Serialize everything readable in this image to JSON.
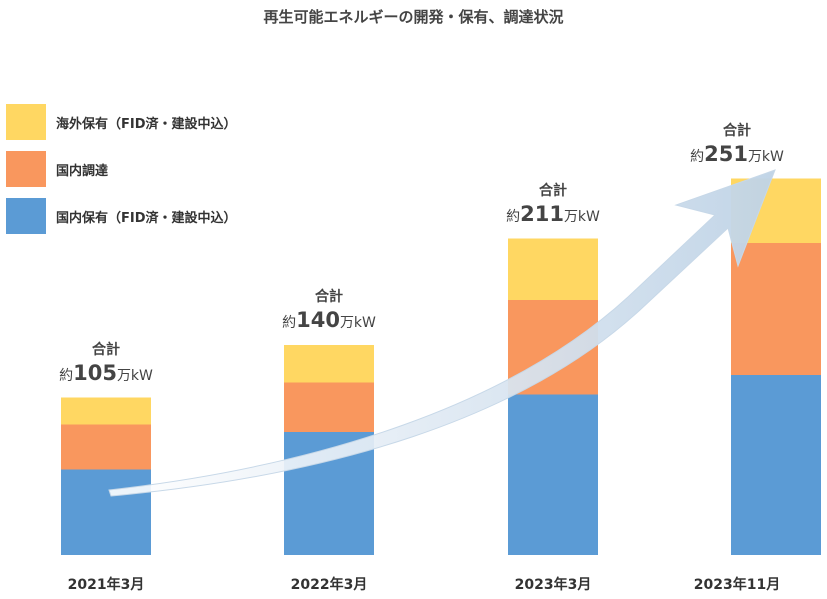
{
  "chart_data": {
    "type": "bar",
    "stacked": true,
    "title": "再生可能エネルギーの開発・保有、調達状況",
    "xlabel": "",
    "ylabel": "",
    "ylim": [
      0,
      260
    ],
    "grid": false,
    "legend_position": "top-left",
    "categories": [
      "2021年3月",
      "2022年3月",
      "2023年3月",
      "2023年11月"
    ],
    "series": [
      {
        "name": "国内保有（FID済・建設中込）",
        "color": "#5b9bd5",
        "values": [
          57,
          82,
          107,
          120
        ]
      },
      {
        "name": "国内調達",
        "color": "#f9975e",
        "values": [
          30,
          33,
          63,
          88
        ]
      },
      {
        "name": "海外保有（FID済・建設中込）",
        "color": "#ffd762",
        "values": [
          18,
          25,
          41,
          43
        ]
      }
    ],
    "legend_order": [
      2,
      1,
      0
    ],
    "totals": {
      "heading": "合計",
      "prefix": "約",
      "unit": "万kW",
      "values": [
        "105",
        "140",
        "211",
        "251"
      ]
    },
    "annotations": [
      {
        "type": "trend-arrow",
        "description": "growth arrow across bars"
      }
    ]
  }
}
